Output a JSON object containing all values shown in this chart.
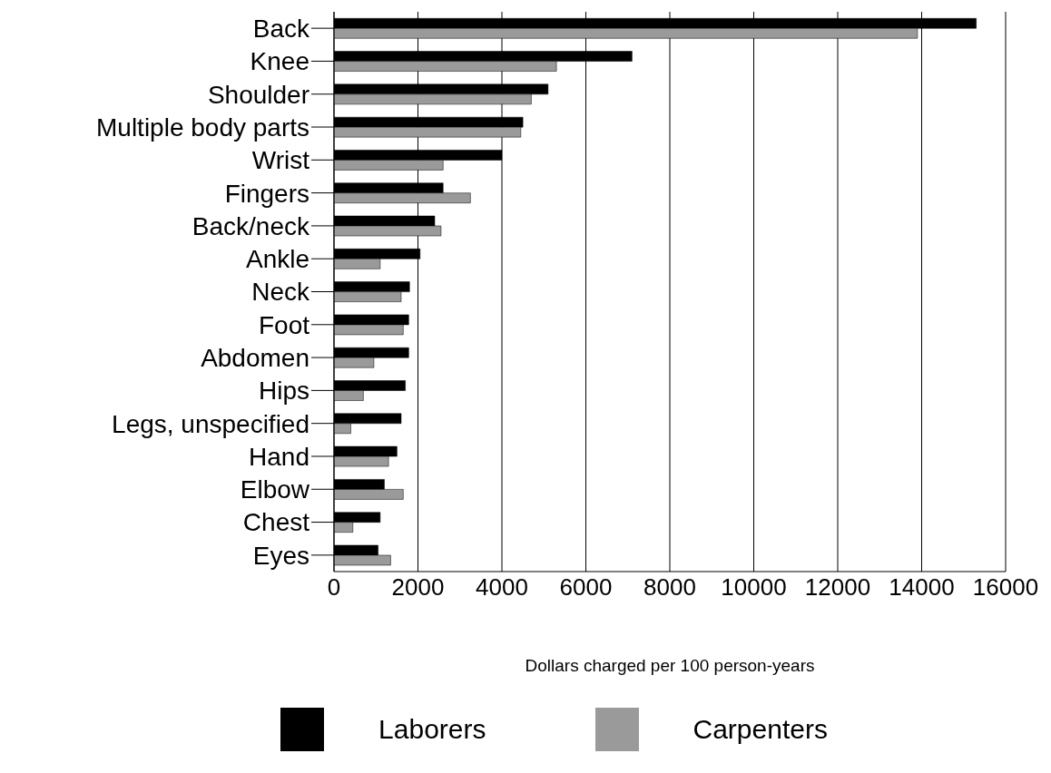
{
  "chart_data": {
    "type": "bar",
    "orientation": "horizontal",
    "xlabel": "Dollars charged per 100 person-years",
    "categories": [
      "Back",
      "Knee",
      "Shoulder",
      "Multiple body parts",
      "Wrist",
      "Fingers",
      "Back/neck",
      "Ankle",
      "Neck",
      "Foot",
      "Abdomen",
      "Hips",
      "Legs, unspecified",
      "Hand",
      "Elbow",
      "Chest",
      "Eyes"
    ],
    "series": [
      {
        "name": "Laborers",
        "color": "#000000",
        "values": [
          15300,
          7100,
          5100,
          4500,
          4000,
          2600,
          2400,
          2050,
          1800,
          1780,
          1780,
          1700,
          1600,
          1500,
          1200,
          1100,
          1050
        ]
      },
      {
        "name": "Carpenters",
        "color": "#9a9a9a",
        "values": [
          13900,
          5300,
          4700,
          4450,
          2600,
          3250,
          2550,
          1100,
          1600,
          1650,
          950,
          700,
          400,
          1300,
          1650,
          450,
          1350
        ]
      }
    ],
    "xlim": [
      0,
      16000
    ],
    "xticks": [
      0,
      2000,
      4000,
      6000,
      8000,
      10000,
      12000,
      14000,
      16000
    ],
    "grid": "x",
    "legend": "bottom"
  }
}
